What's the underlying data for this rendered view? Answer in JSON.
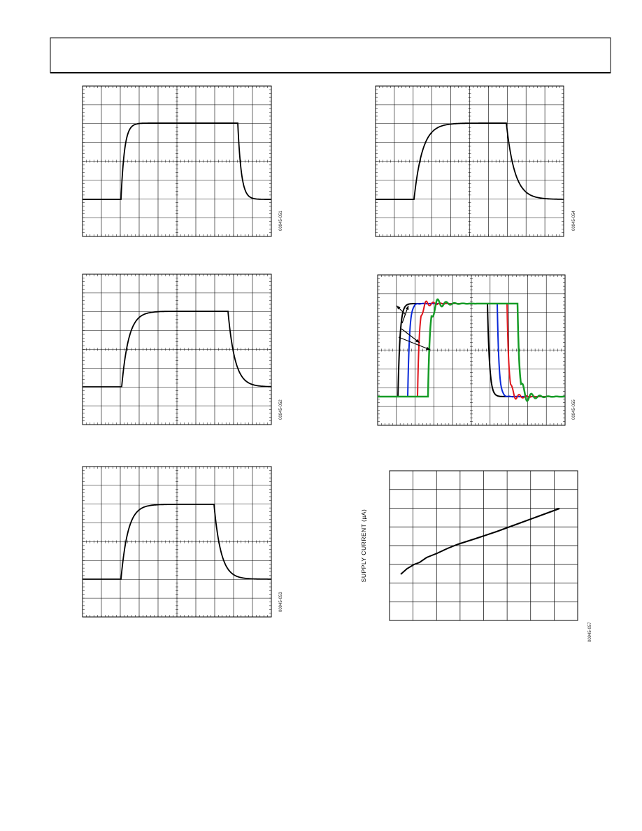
{
  "figures": [
    {
      "figure_id": "00945-051"
    },
    {
      "figure_id": "00945-052"
    },
    {
      "figure_id": "00945-053"
    },
    {
      "figure_id": "00945-054"
    },
    {
      "figure_id": "00945-055"
    }
  ],
  "supply_current_chart": {
    "y_label": "SUPPLY CURRENT (µA)",
    "figure_id": "00945-057"
  }
}
